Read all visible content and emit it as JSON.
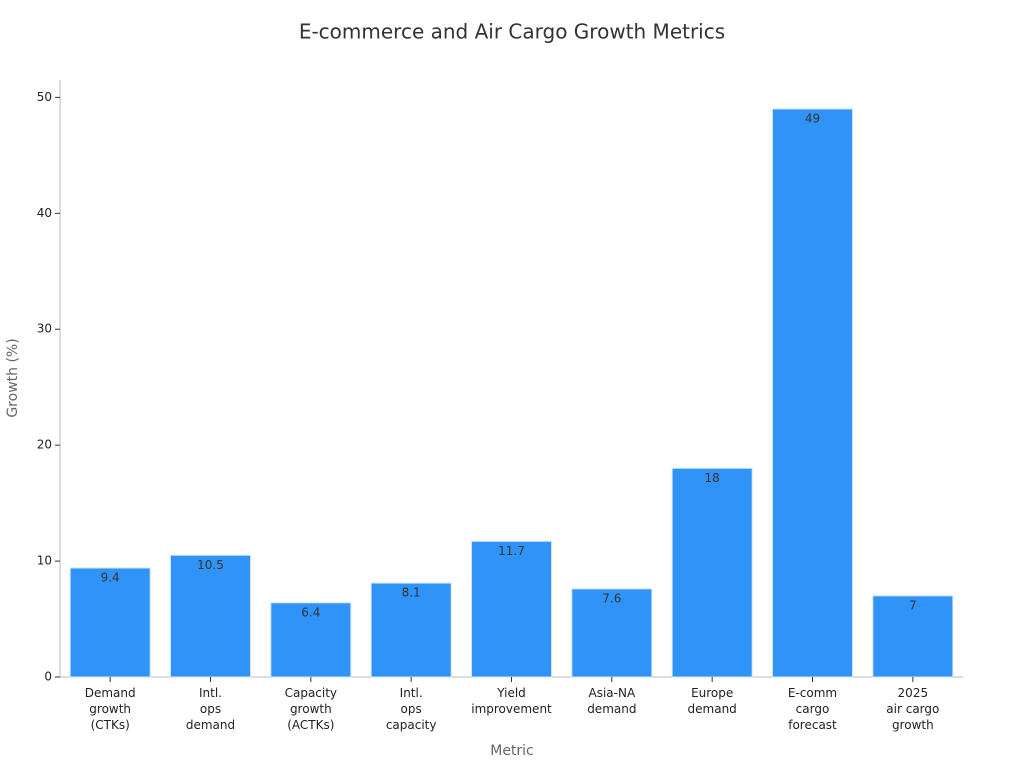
{
  "chart_data": {
    "type": "bar",
    "title": "E-commerce and Air Cargo Growth Metrics",
    "x_label": "Metric",
    "y_label": "Growth (%)",
    "categories": [
      "Demand\ngrowth\n(CTKs)",
      "Intl.\nops\ndemand",
      "Capacity\ngrowth\n(ACTKs)",
      "Intl.\nops\ncapacity",
      "Yield\nimprovement",
      "Asia-NA\ndemand",
      "Europe\ndemand",
      "E-comm\ncargo\nforecast",
      "2025\nair cargo\ngrowth"
    ],
    "values": [
      9.4,
      10.5,
      6.4,
      8.1,
      11.7,
      7.6,
      18,
      49,
      7
    ],
    "color": "#3093f8",
    "ylim": [
      0,
      51.5
    ],
    "yticks": [
      0,
      10,
      20,
      30,
      40,
      50
    ],
    "grid": false
  }
}
